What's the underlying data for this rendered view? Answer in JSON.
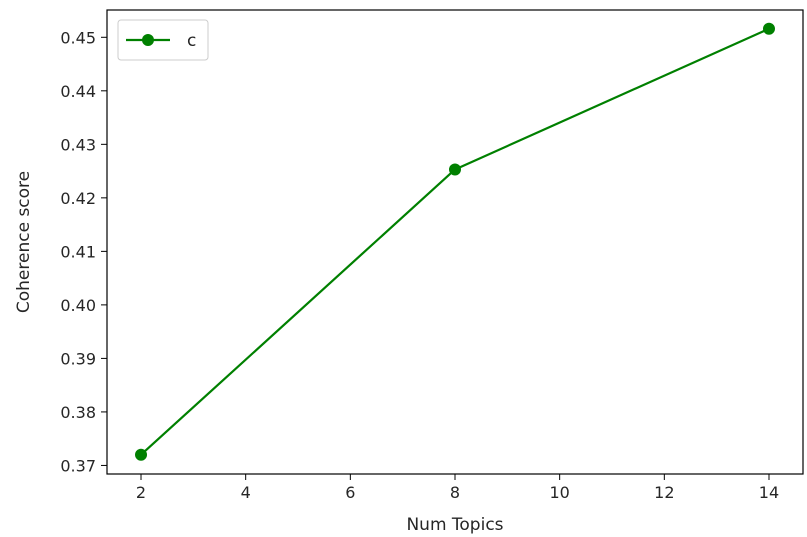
{
  "chart_data": {
    "type": "line",
    "title": "",
    "xlabel": "Num Topics",
    "ylabel": "Coherence score",
    "xlim": [
      1.35,
      14.65
    ],
    "ylim": [
      0.3684,
      0.4551
    ],
    "x_ticks": [
      2,
      4,
      6,
      8,
      10,
      12,
      14
    ],
    "y_ticks": [
      0.37,
      0.38,
      0.39,
      0.4,
      0.41,
      0.42,
      0.43,
      0.44,
      0.45
    ],
    "x_tick_labels": [
      "2",
      "4",
      "6",
      "8",
      "10",
      "12",
      "14"
    ],
    "y_tick_labels": [
      "0.37",
      "0.38",
      "0.39",
      "0.40",
      "0.41",
      "0.42",
      "0.43",
      "0.44",
      "0.45"
    ],
    "grid": false,
    "legend_position": "upper-left",
    "series": [
      {
        "name": "c",
        "color": "#008000",
        "marker": "circle",
        "x": [
          2,
          8,
          14
        ],
        "y": [
          0.372,
          0.4253,
          0.4516
        ]
      }
    ]
  }
}
